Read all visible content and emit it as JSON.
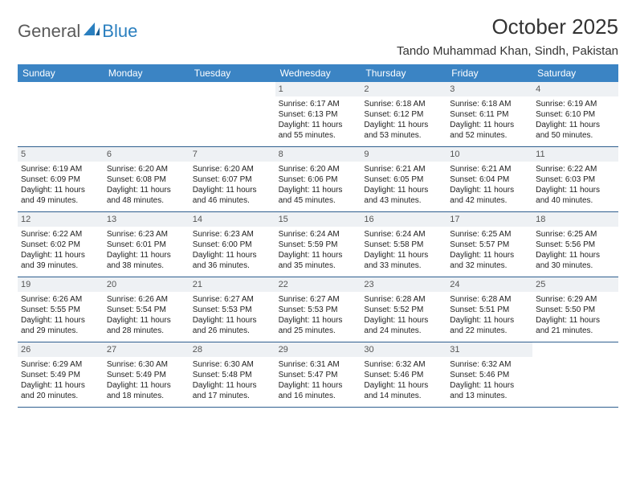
{
  "brand": {
    "part1": "General",
    "part2": "Blue"
  },
  "title": "October 2025",
  "location": "Tando Muhammad Khan, Sindh, Pakistan",
  "colors": {
    "header_bg": "#3b84c4",
    "header_text": "#ffffff",
    "daynum_bg": "#eef1f4",
    "week_border": "#2f5f8f",
    "brand_blue": "#2a7fbf",
    "brand_grey": "#5a5a5a",
    "text": "#222222"
  },
  "weekdays": [
    "Sunday",
    "Monday",
    "Tuesday",
    "Wednesday",
    "Thursday",
    "Friday",
    "Saturday"
  ],
  "weeks": [
    [
      null,
      null,
      null,
      {
        "n": "1",
        "sr": "6:17 AM",
        "ss": "6:13 PM",
        "dl": "11 hours and 55 minutes."
      },
      {
        "n": "2",
        "sr": "6:18 AM",
        "ss": "6:12 PM",
        "dl": "11 hours and 53 minutes."
      },
      {
        "n": "3",
        "sr": "6:18 AM",
        "ss": "6:11 PM",
        "dl": "11 hours and 52 minutes."
      },
      {
        "n": "4",
        "sr": "6:19 AM",
        "ss": "6:10 PM",
        "dl": "11 hours and 50 minutes."
      }
    ],
    [
      {
        "n": "5",
        "sr": "6:19 AM",
        "ss": "6:09 PM",
        "dl": "11 hours and 49 minutes."
      },
      {
        "n": "6",
        "sr": "6:20 AM",
        "ss": "6:08 PM",
        "dl": "11 hours and 48 minutes."
      },
      {
        "n": "7",
        "sr": "6:20 AM",
        "ss": "6:07 PM",
        "dl": "11 hours and 46 minutes."
      },
      {
        "n": "8",
        "sr": "6:20 AM",
        "ss": "6:06 PM",
        "dl": "11 hours and 45 minutes."
      },
      {
        "n": "9",
        "sr": "6:21 AM",
        "ss": "6:05 PM",
        "dl": "11 hours and 43 minutes."
      },
      {
        "n": "10",
        "sr": "6:21 AM",
        "ss": "6:04 PM",
        "dl": "11 hours and 42 minutes."
      },
      {
        "n": "11",
        "sr": "6:22 AM",
        "ss": "6:03 PM",
        "dl": "11 hours and 40 minutes."
      }
    ],
    [
      {
        "n": "12",
        "sr": "6:22 AM",
        "ss": "6:02 PM",
        "dl": "11 hours and 39 minutes."
      },
      {
        "n": "13",
        "sr": "6:23 AM",
        "ss": "6:01 PM",
        "dl": "11 hours and 38 minutes."
      },
      {
        "n": "14",
        "sr": "6:23 AM",
        "ss": "6:00 PM",
        "dl": "11 hours and 36 minutes."
      },
      {
        "n": "15",
        "sr": "6:24 AM",
        "ss": "5:59 PM",
        "dl": "11 hours and 35 minutes."
      },
      {
        "n": "16",
        "sr": "6:24 AM",
        "ss": "5:58 PM",
        "dl": "11 hours and 33 minutes."
      },
      {
        "n": "17",
        "sr": "6:25 AM",
        "ss": "5:57 PM",
        "dl": "11 hours and 32 minutes."
      },
      {
        "n": "18",
        "sr": "6:25 AM",
        "ss": "5:56 PM",
        "dl": "11 hours and 30 minutes."
      }
    ],
    [
      {
        "n": "19",
        "sr": "6:26 AM",
        "ss": "5:55 PM",
        "dl": "11 hours and 29 minutes."
      },
      {
        "n": "20",
        "sr": "6:26 AM",
        "ss": "5:54 PM",
        "dl": "11 hours and 28 minutes."
      },
      {
        "n": "21",
        "sr": "6:27 AM",
        "ss": "5:53 PM",
        "dl": "11 hours and 26 minutes."
      },
      {
        "n": "22",
        "sr": "6:27 AM",
        "ss": "5:53 PM",
        "dl": "11 hours and 25 minutes."
      },
      {
        "n": "23",
        "sr": "6:28 AM",
        "ss": "5:52 PM",
        "dl": "11 hours and 24 minutes."
      },
      {
        "n": "24",
        "sr": "6:28 AM",
        "ss": "5:51 PM",
        "dl": "11 hours and 22 minutes."
      },
      {
        "n": "25",
        "sr": "6:29 AM",
        "ss": "5:50 PM",
        "dl": "11 hours and 21 minutes."
      }
    ],
    [
      {
        "n": "26",
        "sr": "6:29 AM",
        "ss": "5:49 PM",
        "dl": "11 hours and 20 minutes."
      },
      {
        "n": "27",
        "sr": "6:30 AM",
        "ss": "5:49 PM",
        "dl": "11 hours and 18 minutes."
      },
      {
        "n": "28",
        "sr": "6:30 AM",
        "ss": "5:48 PM",
        "dl": "11 hours and 17 minutes."
      },
      {
        "n": "29",
        "sr": "6:31 AM",
        "ss": "5:47 PM",
        "dl": "11 hours and 16 minutes."
      },
      {
        "n": "30",
        "sr": "6:32 AM",
        "ss": "5:46 PM",
        "dl": "11 hours and 14 minutes."
      },
      {
        "n": "31",
        "sr": "6:32 AM",
        "ss": "5:46 PM",
        "dl": "11 hours and 13 minutes."
      },
      null
    ]
  ],
  "labels": {
    "sunrise": "Sunrise: ",
    "sunset": "Sunset: ",
    "daylight": "Daylight: "
  }
}
